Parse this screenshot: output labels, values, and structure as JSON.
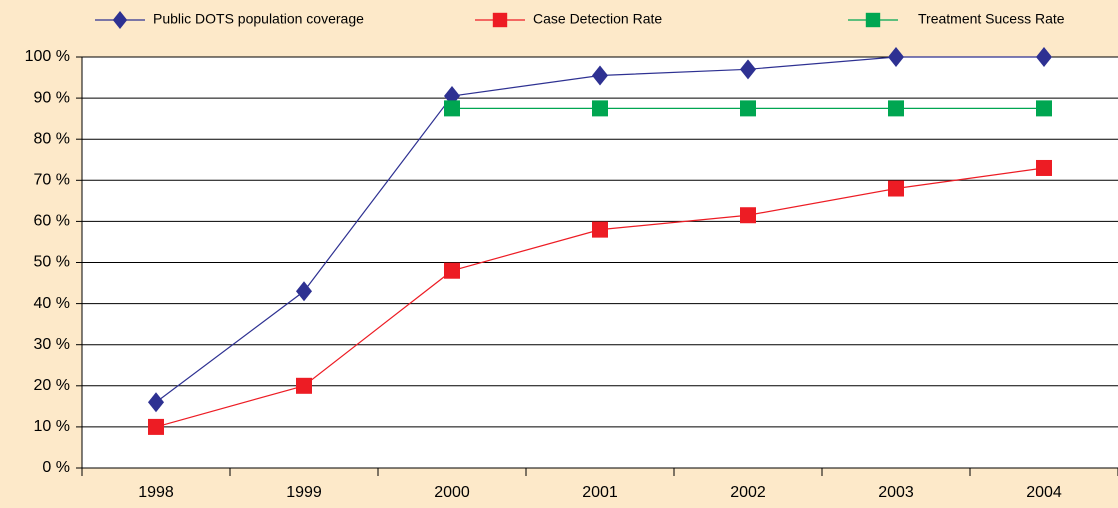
{
  "chart_data": {
    "type": "line",
    "categories": [
      "1998",
      "1999",
      "2000",
      "2001",
      "2002",
      "2003",
      "2004"
    ],
    "series": [
      {
        "name": "Public DOTS population coverage",
        "color": "#2e3192",
        "marker": "diamond",
        "values": [
          16,
          43,
          90.5,
          95.5,
          97,
          100,
          100
        ]
      },
      {
        "name": "Case Detection Rate",
        "color": "#ed1c24",
        "marker": "square",
        "values": [
          10,
          20,
          48,
          58,
          61.5,
          68,
          73
        ]
      },
      {
        "name": "Treatment Sucess Rate",
        "color": "#00a651",
        "marker": "square",
        "values": [
          null,
          null,
          87.5,
          87.5,
          87.5,
          87.5,
          87.5
        ]
      }
    ],
    "ylim": [
      0,
      100
    ],
    "yticks": [
      {
        "value": 0,
        "label": "0 %"
      },
      {
        "value": 10,
        "label": "10 %"
      },
      {
        "value": 20,
        "label": "20 %"
      },
      {
        "value": 30,
        "label": "30 %"
      },
      {
        "value": 40,
        "label": "40 %"
      },
      {
        "value": 50,
        "label": "50 %"
      },
      {
        "value": 60,
        "label": "60 %"
      },
      {
        "value": 70,
        "label": "70 %"
      },
      {
        "value": 80,
        "label": "80 %"
      },
      {
        "value": 90,
        "label": "90 %"
      },
      {
        "value": 100,
        "label": "100 %"
      }
    ],
    "grid": true,
    "legend": "top"
  }
}
